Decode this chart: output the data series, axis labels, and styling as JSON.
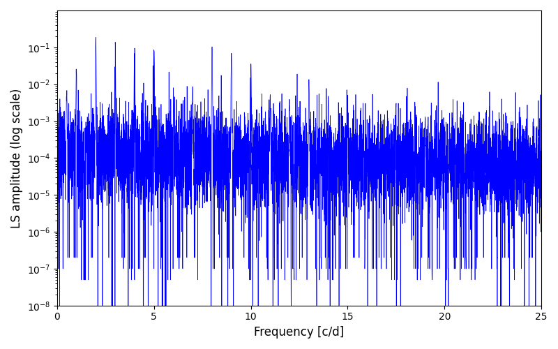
{
  "xlabel": "Frequency [c/d]",
  "ylabel": "LS amplitude (log scale)",
  "xlim": [
    0,
    25
  ],
  "ylim": [
    1e-08,
    1.0
  ],
  "yticks": [
    1e-08,
    1e-07,
    1e-06,
    1e-05,
    0.0001,
    0.001,
    0.01,
    0.1
  ],
  "line_color": "#0000ff",
  "line_width": 0.5,
  "background_color": "#ffffff",
  "figsize": [
    8.0,
    5.0
  ],
  "dpi": 100,
  "yscale": "log",
  "n_points": 8000,
  "freq_max": 25.0,
  "seed": 7
}
